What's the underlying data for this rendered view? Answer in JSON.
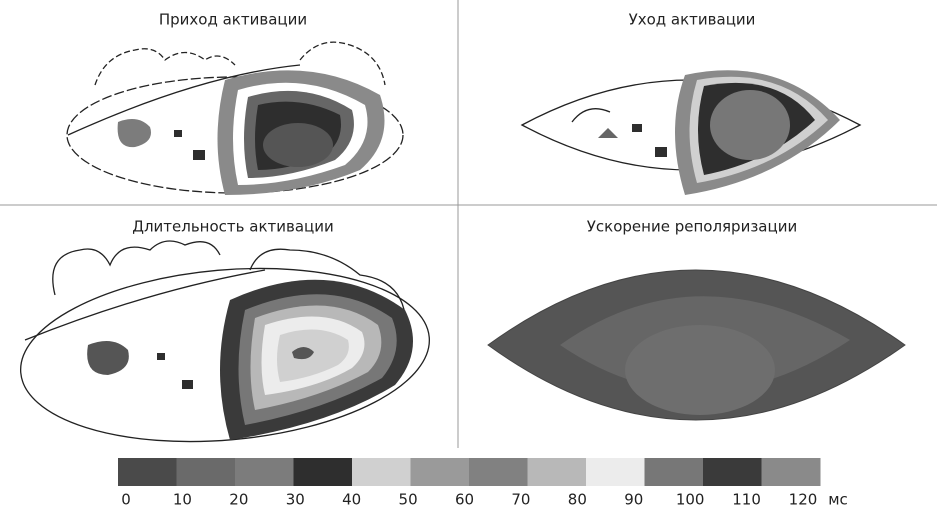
{
  "panels": [
    {
      "title": "Приход активации"
    },
    {
      "title": "Уход активации"
    },
    {
      "title": "Длительность активации"
    },
    {
      "title": "Ускорение реполяризации"
    }
  ],
  "colorbar": {
    "ticks": [
      0,
      10,
      20,
      30,
      40,
      50,
      60,
      70,
      80,
      90,
      100,
      110,
      120
    ],
    "unit": "мс",
    "colors": [
      "#4a4a4a",
      "#6a6a6a",
      "#7c7c7c",
      "#2e2e2e",
      "#d0d0d0",
      "#9a9a9a",
      "#818181",
      "#b8b8b8",
      "#ececec",
      "#777777",
      "#3a3a3a",
      "#8a8a8a"
    ]
  }
}
